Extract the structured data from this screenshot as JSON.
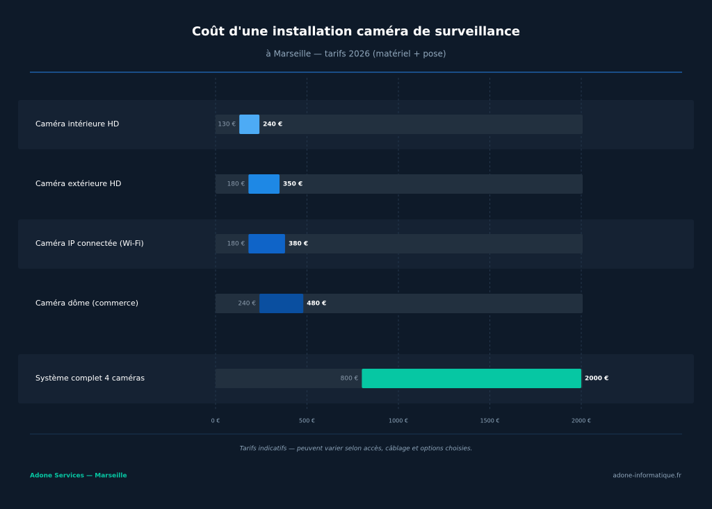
{
  "chart_data": {
    "type": "range-bar",
    "title": "Coût d'une installation caméra de surveillance",
    "subtitle": "à Marseille — tarifs 2026 (matériel + pose)",
    "categories": [
      "Caméra intérieure HD",
      "Caméra extérieure HD",
      "Caméra IP connectée (Wi-Fi)",
      "Caméra dôme (commerce)",
      "Système complet 4 caméras"
    ],
    "low_values": [
      130,
      180,
      180,
      240,
      800
    ],
    "low_value_labels": [
      "130 €",
      "180 €",
      "180 €",
      "240 €",
      "800 €"
    ],
    "high_values": [
      240,
      350,
      380,
      480,
      2000
    ],
    "high_value_labels": [
      "240 €",
      "350 €",
      "380 €",
      "480 €",
      "2000 €"
    ],
    "colors": [
      "#4dabf5",
      "#1e88e5",
      "#0f64c8",
      "#0a4fa0",
      "#06c7a3"
    ],
    "xlim": [
      0,
      2000
    ],
    "xticks": [
      {
        "value": 0,
        "label": "0 €"
      },
      {
        "value": 500,
        "label": "500 €"
      },
      {
        "value": 1000,
        "label": "1000 €"
      },
      {
        "value": 1500,
        "label": "1500 €"
      },
      {
        "value": 2000,
        "label": "2000 €"
      }
    ],
    "grid": true
  },
  "footer": {
    "note": "Tarifs indicatifs — peuvent varier selon accès, câblage et options choisies.",
    "brand": "Adone Services — Marseille",
    "website": "adone-informatique.fr"
  }
}
